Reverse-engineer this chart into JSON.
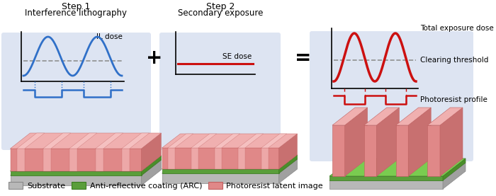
{
  "step1_title": "Step 1",
  "step1_subtitle": "Interference lithography",
  "step2_title": "Step 2",
  "step2_subtitle": "Secondary exposure",
  "il_dose_label": "IL dose",
  "se_dose_label": "SE dose",
  "total_dose_label": "Total exposure dose",
  "clearing_label": "Clearing threshold",
  "photoresist_label": "Photoresist profile",
  "legend_substrate": "Substrate",
  "legend_arc": "Anti-reflective coating (ARC)",
  "legend_photoresist": "Photoresist latent image",
  "color_substrate_front": "#b8b8b8",
  "color_substrate_top": "#d0d0d0",
  "color_substrate_right": "#a0a0a0",
  "color_arc_front": "#5a9e3a",
  "color_arc_top": "#7acc50",
  "color_arc_right": "#4a8e2a",
  "color_pr_front": "#e08888",
  "color_pr_top": "#f0b0b0",
  "color_pr_right": "#c87070",
  "color_pr_ridge_front": "#e08888",
  "color_pr_ridge_top": "#f0b0b0",
  "color_pr_ridge_right": "#c87070",
  "color_blue": "#3070c8",
  "color_red": "#cc1010",
  "color_dashed": "#909090",
  "bg_color": "#ffffff",
  "panel_bg1": "#dde4f2",
  "panel_bg2": "#dde4f2",
  "panel_bg3": "#dde4f2"
}
